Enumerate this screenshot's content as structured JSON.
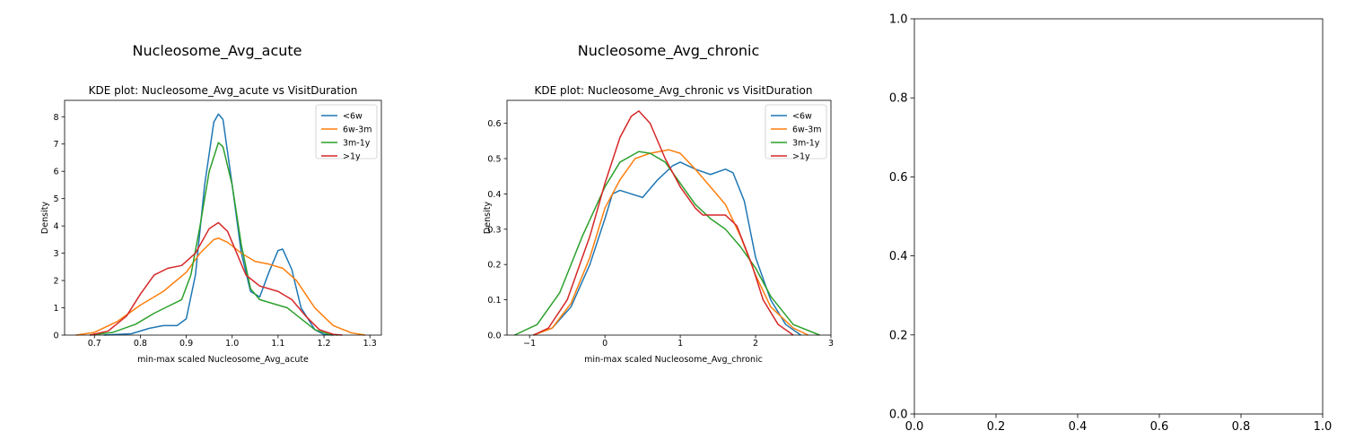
{
  "colors": {
    "lt6w": "#1f77b4",
    "6w3m": "#ff7f0e",
    "3m1y": "#2ca02c",
    "gt1y": "#d62728"
  },
  "chart_data": [
    {
      "type": "line",
      "suptitle": "Nucleosome_Avg_acute",
      "title": "KDE plot:  Nucleosome_Avg_acute vs VisitDuration",
      "xlabel": "min-max scaled Nucleosome_Avg_acute",
      "ylabel": "Density",
      "xlim": [
        0.635,
        1.325
      ],
      "ylim": [
        0,
        8.6
      ],
      "xticks": [
        0.7,
        0.8,
        0.9,
        1.0,
        1.1,
        1.2,
        1.3
      ],
      "xtick_labels": [
        "0.7",
        "0.8",
        "0.9",
        "1.0",
        "1.1",
        "1.2",
        "1.3"
      ],
      "yticks": [
        0,
        1,
        2,
        3,
        4,
        5,
        6,
        7,
        8
      ],
      "ytick_labels": [
        "0",
        "1",
        "2",
        "3",
        "4",
        "5",
        "6",
        "7",
        "8"
      ],
      "legend_position": "top-right",
      "series": [
        {
          "name": "<6w",
          "color_key": "lt6w",
          "points": [
            [
              0.72,
              0
            ],
            [
              0.78,
              0.05
            ],
            [
              0.82,
              0.25
            ],
            [
              0.85,
              0.35
            ],
            [
              0.88,
              0.35
            ],
            [
              0.9,
              0.6
            ],
            [
              0.92,
              2.2
            ],
            [
              0.94,
              5.5
            ],
            [
              0.96,
              7.8
            ],
            [
              0.97,
              8.1
            ],
            [
              0.98,
              7.9
            ],
            [
              1.0,
              5.5
            ],
            [
              1.02,
              3.0
            ],
            [
              1.04,
              1.6
            ],
            [
              1.06,
              1.4
            ],
            [
              1.08,
              2.3
            ],
            [
              1.1,
              3.1
            ],
            [
              1.11,
              3.15
            ],
            [
              1.13,
              2.4
            ],
            [
              1.15,
              1.0
            ],
            [
              1.18,
              0.2
            ],
            [
              1.2,
              0.02
            ],
            [
              1.22,
              0
            ]
          ]
        },
        {
          "name": "6w-3m",
          "color_key": "6w3m",
          "points": [
            [
              0.66,
              0
            ],
            [
              0.7,
              0.1
            ],
            [
              0.75,
              0.5
            ],
            [
              0.8,
              1.1
            ],
            [
              0.85,
              1.6
            ],
            [
              0.9,
              2.3
            ],
            [
              0.93,
              3.0
            ],
            [
              0.96,
              3.5
            ],
            [
              0.97,
              3.55
            ],
            [
              0.99,
              3.4
            ],
            [
              1.02,
              3.0
            ],
            [
              1.05,
              2.7
            ],
            [
              1.08,
              2.6
            ],
            [
              1.11,
              2.45
            ],
            [
              1.14,
              2.0
            ],
            [
              1.18,
              1.0
            ],
            [
              1.22,
              0.35
            ],
            [
              1.26,
              0.08
            ],
            [
              1.29,
              0
            ]
          ]
        },
        {
          "name": "3m-1y",
          "color_key": "3m1y",
          "points": [
            [
              0.69,
              0
            ],
            [
              0.74,
              0.1
            ],
            [
              0.79,
              0.4
            ],
            [
              0.83,
              0.8
            ],
            [
              0.86,
              1.05
            ],
            [
              0.89,
              1.3
            ],
            [
              0.91,
              2.2
            ],
            [
              0.93,
              4.0
            ],
            [
              0.95,
              6.0
            ],
            [
              0.97,
              7.05
            ],
            [
              0.98,
              6.9
            ],
            [
              1.0,
              5.5
            ],
            [
              1.02,
              3.3
            ],
            [
              1.04,
              1.7
            ],
            [
              1.06,
              1.3
            ],
            [
              1.09,
              1.15
            ],
            [
              1.12,
              1.0
            ],
            [
              1.15,
              0.6
            ],
            [
              1.18,
              0.2
            ],
            [
              1.21,
              0.03
            ],
            [
              1.23,
              0
            ]
          ]
        },
        {
          "name": ">1y",
          "color_key": "gt1y",
          "points": [
            [
              0.69,
              0
            ],
            [
              0.73,
              0.15
            ],
            [
              0.77,
              0.7
            ],
            [
              0.8,
              1.5
            ],
            [
              0.83,
              2.2
            ],
            [
              0.86,
              2.45
            ],
            [
              0.89,
              2.55
            ],
            [
              0.92,
              3.0
            ],
            [
              0.95,
              3.9
            ],
            [
              0.97,
              4.12
            ],
            [
              0.99,
              3.8
            ],
            [
              1.01,
              3.0
            ],
            [
              1.03,
              2.2
            ],
            [
              1.06,
              1.8
            ],
            [
              1.1,
              1.6
            ],
            [
              1.13,
              1.3
            ],
            [
              1.16,
              0.7
            ],
            [
              1.19,
              0.2
            ],
            [
              1.22,
              0.03
            ],
            [
              1.24,
              0
            ]
          ]
        }
      ]
    },
    {
      "type": "line",
      "suptitle": "Nucleosome_Avg_chronic",
      "title": "KDE plot:  Nucleosome_Avg_chronic vs VisitDuration",
      "xlabel": "min-max scaled Nucleosome_Avg_chronic",
      "ylabel": "Density",
      "xlim": [
        -1.3,
        3.0
      ],
      "ylim": [
        0,
        0.665
      ],
      "xticks": [
        -1,
        0,
        1,
        2,
        3
      ],
      "xtick_labels": [
        "−1",
        "0",
        "1",
        "2",
        "3"
      ],
      "yticks": [
        0,
        0.1,
        0.2,
        0.3,
        0.4,
        0.5,
        0.6
      ],
      "ytick_labels": [
        "0.0",
        "0.1",
        "0.2",
        "0.3",
        "0.4",
        "0.5",
        "0.6"
      ],
      "legend_position": "top-right",
      "series": [
        {
          "name": "<6w",
          "color_key": "lt6w",
          "points": [
            [
              -0.95,
              0
            ],
            [
              -0.7,
              0.02
            ],
            [
              -0.45,
              0.08
            ],
            [
              -0.2,
              0.2
            ],
            [
              0,
              0.33
            ],
            [
              0.1,
              0.4
            ],
            [
              0.2,
              0.41
            ],
            [
              0.35,
              0.4
            ],
            [
              0.5,
              0.39
            ],
            [
              0.7,
              0.44
            ],
            [
              0.9,
              0.48
            ],
            [
              1.0,
              0.49
            ],
            [
              1.2,
              0.47
            ],
            [
              1.4,
              0.455
            ],
            [
              1.6,
              0.47
            ],
            [
              1.7,
              0.46
            ],
            [
              1.85,
              0.38
            ],
            [
              2.0,
              0.22
            ],
            [
              2.2,
              0.1
            ],
            [
              2.4,
              0.03
            ],
            [
              2.6,
              0
            ]
          ]
        },
        {
          "name": "6w-3m",
          "color_key": "6w3m",
          "points": [
            [
              -0.95,
              0
            ],
            [
              -0.7,
              0.02
            ],
            [
              -0.45,
              0.09
            ],
            [
              -0.2,
              0.22
            ],
            [
              0,
              0.36
            ],
            [
              0.2,
              0.44
            ],
            [
              0.4,
              0.5
            ],
            [
              0.6,
              0.515
            ],
            [
              0.85,
              0.525
            ],
            [
              1.0,
              0.515
            ],
            [
              1.2,
              0.47
            ],
            [
              1.4,
              0.42
            ],
            [
              1.6,
              0.37
            ],
            [
              1.8,
              0.28
            ],
            [
              2.0,
              0.17
            ],
            [
              2.2,
              0.08
            ],
            [
              2.5,
              0.02
            ],
            [
              2.7,
              0
            ]
          ]
        },
        {
          "name": "3m-1y",
          "color_key": "3m1y",
          "points": [
            [
              -1.2,
              0
            ],
            [
              -0.9,
              0.03
            ],
            [
              -0.6,
              0.12
            ],
            [
              -0.3,
              0.28
            ],
            [
              0,
              0.42
            ],
            [
              0.2,
              0.49
            ],
            [
              0.45,
              0.52
            ],
            [
              0.6,
              0.515
            ],
            [
              0.8,
              0.49
            ],
            [
              1.0,
              0.43
            ],
            [
              1.2,
              0.37
            ],
            [
              1.4,
              0.33
            ],
            [
              1.6,
              0.3
            ],
            [
              1.8,
              0.25
            ],
            [
              2.0,
              0.19
            ],
            [
              2.2,
              0.11
            ],
            [
              2.5,
              0.03
            ],
            [
              2.85,
              0
            ]
          ]
        },
        {
          "name": ">1y",
          "color_key": "gt1y",
          "points": [
            [
              -0.95,
              0
            ],
            [
              -0.75,
              0.02
            ],
            [
              -0.5,
              0.1
            ],
            [
              -0.2,
              0.28
            ],
            [
              0,
              0.43
            ],
            [
              0.2,
              0.56
            ],
            [
              0.35,
              0.62
            ],
            [
              0.45,
              0.635
            ],
            [
              0.6,
              0.6
            ],
            [
              0.8,
              0.5
            ],
            [
              1.0,
              0.42
            ],
            [
              1.2,
              0.36
            ],
            [
              1.3,
              0.34
            ],
            [
              1.5,
              0.34
            ],
            [
              1.6,
              0.34
            ],
            [
              1.75,
              0.31
            ],
            [
              1.95,
              0.2
            ],
            [
              2.1,
              0.1
            ],
            [
              2.3,
              0.03
            ],
            [
              2.5,
              0
            ]
          ]
        }
      ]
    },
    {
      "type": "line",
      "title": "",
      "xlabel": "",
      "ylabel": "",
      "xlim": [
        0,
        1
      ],
      "ylim": [
        0,
        1
      ],
      "xticks": [
        0,
        0.2,
        0.4,
        0.6,
        0.8,
        1.0
      ],
      "xtick_labels": [
        "0.0",
        "0.2",
        "0.4",
        "0.6",
        "0.8",
        "1.0"
      ],
      "yticks": [
        0,
        0.2,
        0.4,
        0.6,
        0.8,
        1.0
      ],
      "ytick_labels": [
        "0.0",
        "0.2",
        "0.4",
        "0.6",
        "0.8",
        "1.0"
      ],
      "series": []
    }
  ]
}
